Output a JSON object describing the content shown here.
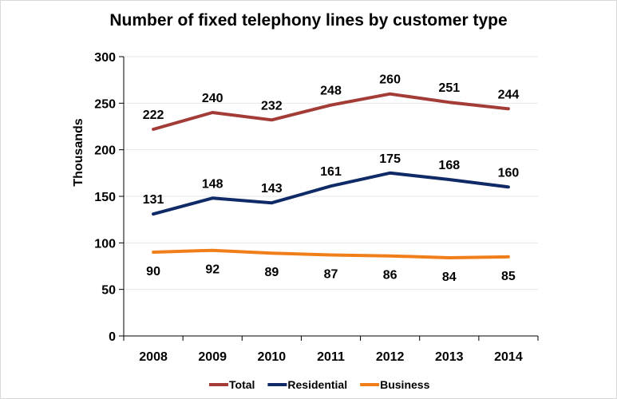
{
  "chart_data": {
    "type": "line",
    "title": "Number of fixed telephony lines by customer type",
    "xlabel": "",
    "ylabel": "Thousands",
    "categories": [
      "2008",
      "2009",
      "2010",
      "2011",
      "2012",
      "2013",
      "2014"
    ],
    "ylim": [
      0,
      300
    ],
    "yticks": [
      0,
      50,
      100,
      150,
      200,
      250,
      300
    ],
    "grid": true,
    "legend_position": "bottom",
    "series": [
      {
        "name": "Total",
        "color": "#a33b36",
        "values": [
          222,
          240,
          232,
          248,
          260,
          251,
          244
        ],
        "label_position": "above"
      },
      {
        "name": "Residential",
        "color": "#0f2a66",
        "values": [
          131,
          148,
          143,
          161,
          175,
          168,
          160
        ],
        "label_position": "above"
      },
      {
        "name": "Business",
        "color": "#f07f1a",
        "values": [
          90,
          92,
          89,
          87,
          86,
          84,
          85
        ],
        "label_position": "below"
      }
    ]
  }
}
